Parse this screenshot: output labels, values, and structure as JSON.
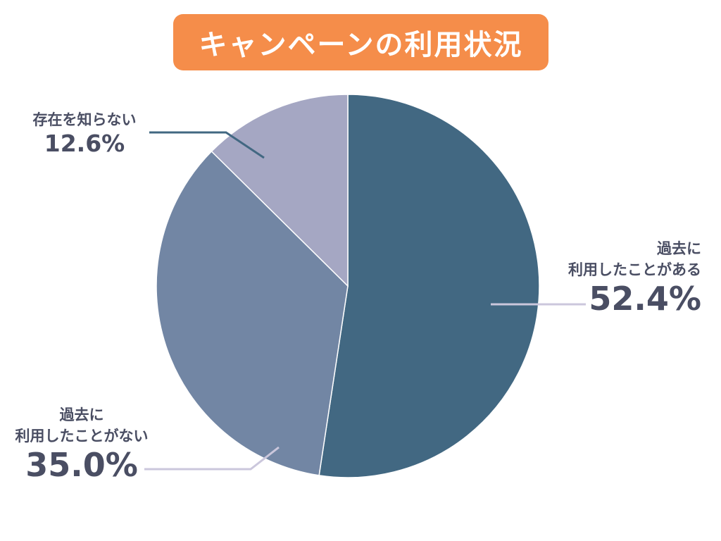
{
  "title": "キャンペーンの利用状況",
  "colors": {
    "title_bg": "#f58d4a",
    "title_text": "#ffffff",
    "label_text": "#4a4e63",
    "slice_edge": "#ffffff"
  },
  "chart_data": {
    "type": "pie",
    "title": "キャンペーンの利用状況",
    "slices": [
      {
        "lines": [
          "過去に",
          "利用したことがある"
        ],
        "value": 52.4,
        "value_label": "52.4%",
        "color": "#426882",
        "leader_color": "#cbc7dc"
      },
      {
        "lines": [
          "過去に",
          "利用したことがない"
        ],
        "value": 35.0,
        "value_label": "35.0%",
        "color": "#7286a4",
        "leader_color": "#cbc7dc"
      },
      {
        "lines": [
          "存在を知らない"
        ],
        "value": 12.6,
        "value_label": "12.6%",
        "color": "#a5a7c3",
        "leader_color": "#426882"
      }
    ],
    "start_angle": "12 o'clock",
    "direction": "clockwise",
    "legend": "none"
  }
}
